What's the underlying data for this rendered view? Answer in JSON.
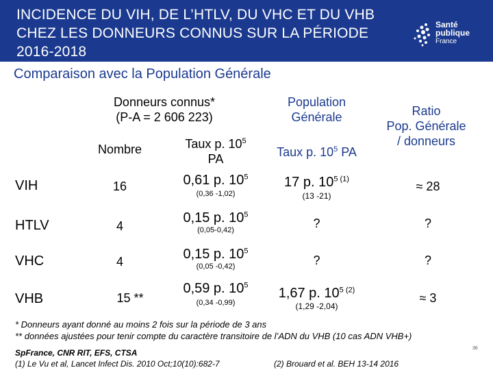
{
  "header": {
    "title": "INCIDENCE DU VIH, DE L’HTLV, DU VHC ET DU VHB CHEZ LES DONNEURS CONNUS SUR LA PÉRIODE 2016-2018",
    "logo": {
      "line1": "Santé",
      "line2": "publique",
      "line3": "France"
    }
  },
  "subtitle": "Comparaison avec la Population Générale",
  "columns": {
    "donneurs_group_line1": "Donneurs connus*",
    "donneurs_group_line2": "(P-A = 2 606 223)",
    "nombre": "Nombre",
    "taux_prefix": "Taux p. 10",
    "taux_exp": "5",
    "taux_suffix": "PA",
    "popgen_line1": "Population",
    "popgen_line2": "Générale",
    "popgen_taux_prefix": "Taux p. 10",
    "popgen_taux_exp": "5",
    "popgen_taux_suffix": " PA",
    "ratio_line1": "Ratio",
    "ratio_line2": "Pop. Générale",
    "ratio_line3": "/ donneurs"
  },
  "rows": [
    {
      "label": "VIH",
      "nombre": "16",
      "taux": "0,61 p. 10",
      "taux_exp": "5",
      "taux_ci": "(0,36 -1,02)",
      "pop": "17 p. 10",
      "pop_exp": "5",
      "pop_ref": " (1)",
      "pop_ci": "(13 -21)",
      "ratio": "≈ 28"
    },
    {
      "label": "HTLV",
      "nombre": "4",
      "taux": "0,15 p. 10",
      "taux_exp": "5",
      "taux_ci": "(0,05-0,42)",
      "pop": "?",
      "pop_exp": "",
      "pop_ref": "",
      "pop_ci": "",
      "ratio": "?"
    },
    {
      "label": "VHC",
      "nombre": "4",
      "taux": "0,15 p. 10",
      "taux_exp": "5",
      "taux_ci": "(0,05 -0,42)",
      "pop": "?",
      "pop_exp": "",
      "pop_ref": "",
      "pop_ci": "",
      "ratio": "?"
    },
    {
      "label": "VHB",
      "nombre": "15 **",
      "taux": "0,59 p. 10",
      "taux_exp": "5",
      "taux_ci": "(0,34 -0,99)",
      "pop": "1,67 p. 10",
      "pop_exp": "5",
      "pop_ref": " (2)",
      "pop_ci": "(1,29 -2,04)",
      "ratio": "≈ 3"
    }
  ],
  "notes": {
    "note1": "* Donneurs ayant donné au moins 2 fois sur la période de 3 ans",
    "note2": "** données ajustées pour tenir compte du caractère transitoire de l’ADN du VHB (10 cas ADN VHB+)"
  },
  "footer": {
    "source": "SpFrance, CNR RIT, EFS, CTSA",
    "ref1": "(1) Le Vu et al, Lancet Infect Dis. 2010 Oct;10(10):682-7",
    "ref2": "(2) Brouard et al. BEH 13-14 2016",
    "page": "36"
  }
}
